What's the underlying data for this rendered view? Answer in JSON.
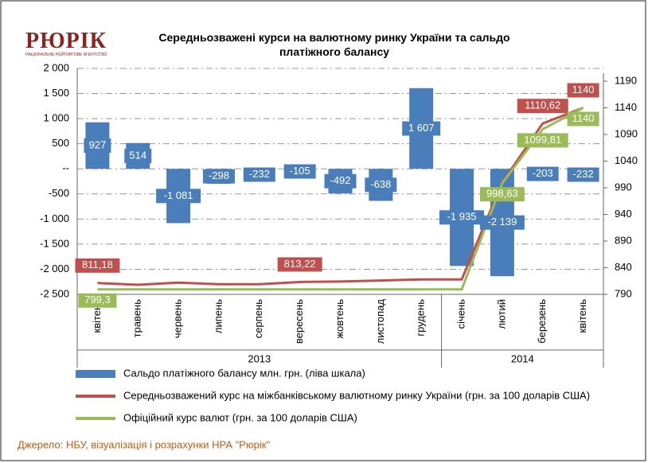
{
  "logo": {
    "name": "РЮРІК",
    "tagline": "НАЦІОНАЛЬНЕ РЕЙТИНГОВЕ АГЕНТСТВО"
  },
  "chart_data": {
    "type": "combo",
    "title": "Середньозважені курси на валютному ринку України та сальдо платіжного балансу",
    "categories": [
      "квітень",
      "травень",
      "червень",
      "липень",
      "серпень",
      "вересень",
      "жовтень",
      "листопад",
      "грудень",
      "січень",
      "лютий",
      "березень",
      "квітень"
    ],
    "groups": [
      "2013",
      "2014"
    ],
    "ylim": [
      -2500,
      2000
    ],
    "yticks": [
      {
        "value": 2000,
        "label": "2 000"
      },
      {
        "value": 1500,
        "label": "1 500"
      },
      {
        "value": 1000,
        "label": "1 000"
      },
      500,
      {
        "value": 0,
        "label": "--"
      },
      -500,
      {
        "value": -1000,
        "label": "-1 000"
      },
      {
        "value": -1500,
        "label": "-1 500"
      },
      {
        "value": -2000,
        "label": "-2 000"
      },
      {
        "value": -2500,
        "label": "-2 500"
      }
    ],
    "y2lim": [
      790,
      1190
    ],
    "y2ticks": [
      1190,
      1140,
      1090,
      1040,
      990,
      940,
      890,
      840,
      790
    ],
    "grid": true,
    "series": [
      {
        "name": "Сальдо платіжного балансу млн. грн. (ліва шкала)",
        "type": "bar",
        "color": "#4a7ebb",
        "values": [
          927,
          514,
          -1081,
          -298,
          -232,
          -105,
          -492,
          -638,
          1607,
          -1935,
          -2139,
          -203,
          -232
        ],
        "value_labels": [
          "927",
          "514",
          "-1 081",
          "-298",
          "-232",
          "-105",
          "-492",
          "-638",
          "1 607",
          "-1 935",
          "-2 139",
          "-203",
          "-232"
        ]
      },
      {
        "name": "Середньозважений курс на міжбанківському валютному ринку України (грн. за 100 доларів США)",
        "type": "line",
        "axis": "y2",
        "color": "#c0504d",
        "values": [
          811.18,
          808,
          812,
          809,
          809,
          813.22,
          814,
          816,
          818,
          818,
          1000,
          1110.62,
          1140
        ],
        "value_labels": [
          "811,18",
          null,
          null,
          null,
          null,
          "813,22",
          null,
          null,
          null,
          null,
          null,
          "1110,62",
          "1140"
        ]
      },
      {
        "name": "Офіційний курс валют (грн. за 100 доларів США)",
        "type": "line",
        "axis": "y2",
        "color": "#9bbb59",
        "values": [
          799.3,
          799.3,
          799.3,
          799.3,
          799.3,
          799.3,
          799.3,
          799.3,
          799.3,
          799.3,
          998.63,
          1099.81,
          1140
        ],
        "value_labels": [
          "799,3",
          null,
          null,
          null,
          null,
          null,
          null,
          null,
          null,
          null,
          "998,63",
          "1099,81",
          "1140"
        ]
      }
    ],
    "source": "Джерело: НБУ, візуалізація і розрахунки НРА \"Рюрік\""
  }
}
